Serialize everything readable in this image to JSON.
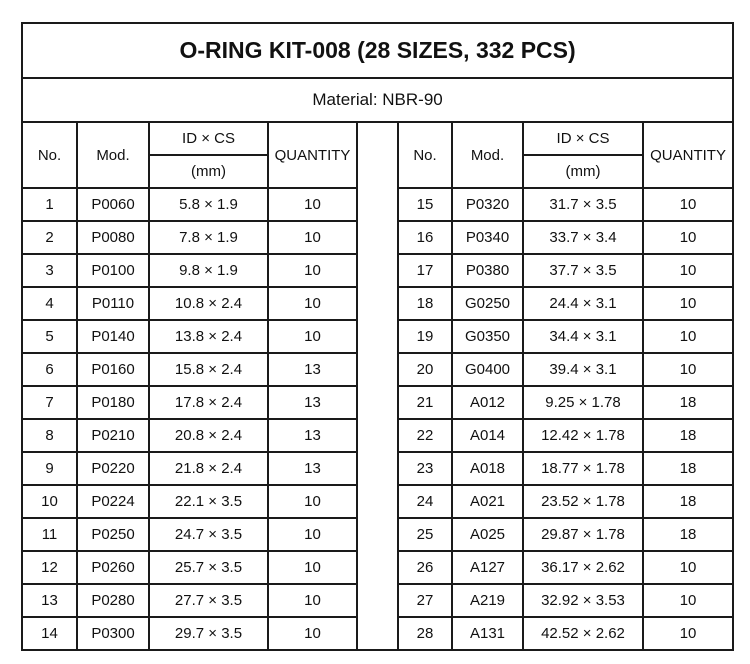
{
  "title": "O-RING KIT-008 (28 SIZES, 332 PCS)",
  "material": "Material: NBR-90",
  "headers": {
    "no": "No.",
    "mod": "Mod.",
    "idcs": "ID × CS",
    "unit": "(mm)",
    "qty": "QUANTITY"
  },
  "left_rows": [
    {
      "no": "1",
      "mod": "P0060",
      "size": "5.8 × 1.9",
      "qty": "10"
    },
    {
      "no": "2",
      "mod": "P0080",
      "size": "7.8 × 1.9",
      "qty": "10"
    },
    {
      "no": "3",
      "mod": "P0100",
      "size": "9.8 × 1.9",
      "qty": "10"
    },
    {
      "no": "4",
      "mod": "P0110",
      "size": "10.8 × 2.4",
      "qty": "10"
    },
    {
      "no": "5",
      "mod": "P0140",
      "size": "13.8 × 2.4",
      "qty": "10"
    },
    {
      "no": "6",
      "mod": "P0160",
      "size": "15.8 × 2.4",
      "qty": "13"
    },
    {
      "no": "7",
      "mod": "P0180",
      "size": "17.8 × 2.4",
      "qty": "13"
    },
    {
      "no": "8",
      "mod": "P0210",
      "size": "20.8 × 2.4",
      "qty": "13"
    },
    {
      "no": "9",
      "mod": "P0220",
      "size": "21.8 × 2.4",
      "qty": "13"
    },
    {
      "no": "10",
      "mod": "P0224",
      "size": "22.1 × 3.5",
      "qty": "10"
    },
    {
      "no": "11",
      "mod": "P0250",
      "size": "24.7 × 3.5",
      "qty": "10"
    },
    {
      "no": "12",
      "mod": "P0260",
      "size": "25.7 × 3.5",
      "qty": "10"
    },
    {
      "no": "13",
      "mod": "P0280",
      "size": "27.7 × 3.5",
      "qty": "10"
    },
    {
      "no": "14",
      "mod": "P0300",
      "size": "29.7 × 3.5",
      "qty": "10"
    }
  ],
  "right_rows": [
    {
      "no": "15",
      "mod": "P0320",
      "size": "31.7 × 3.5",
      "qty": "10"
    },
    {
      "no": "16",
      "mod": "P0340",
      "size": "33.7 × 3.4",
      "qty": "10"
    },
    {
      "no": "17",
      "mod": "P0380",
      "size": "37.7 × 3.5",
      "qty": "10"
    },
    {
      "no": "18",
      "mod": "G0250",
      "size": "24.4 × 3.1",
      "qty": "10"
    },
    {
      "no": "19",
      "mod": "G0350",
      "size": "34.4 × 3.1",
      "qty": "10"
    },
    {
      "no": "20",
      "mod": "G0400",
      "size": "39.4 × 3.1",
      "qty": "10"
    },
    {
      "no": "21",
      "mod": "A012",
      "size": "9.25 × 1.78",
      "qty": "18"
    },
    {
      "no": "22",
      "mod": "A014",
      "size": "12.42 × 1.78",
      "qty": "18"
    },
    {
      "no": "23",
      "mod": "A018",
      "size": "18.77 × 1.78",
      "qty": "18"
    },
    {
      "no": "24",
      "mod": "A021",
      "size": "23.52 × 1.78",
      "qty": "18"
    },
    {
      "no": "25",
      "mod": "A025",
      "size": "29.87 × 1.78",
      "qty": "18"
    },
    {
      "no": "26",
      "mod": "A127",
      "size": "36.17 × 2.62",
      "qty": "10"
    },
    {
      "no": "27",
      "mod": "A219",
      "size": "32.92 × 3.53",
      "qty": "10"
    },
    {
      "no": "28",
      "mod": "A131",
      "size": "42.52 × 2.62",
      "qty": "10"
    }
  ]
}
